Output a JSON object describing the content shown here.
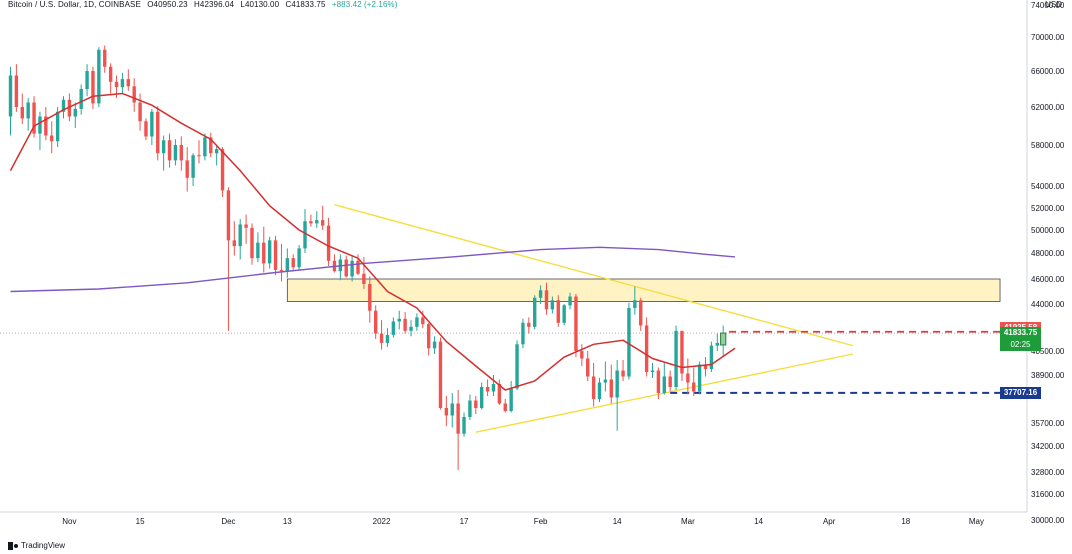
{
  "legend": {
    "symbol": "Bitcoin / U.S. Dollar, 1D, COINBASE",
    "open": "O40950.23",
    "high": "H42396.04",
    "low": "L40130.00",
    "close": "C41833.75",
    "change": "+883.42 (+2.16%)"
  },
  "currency_label": "USD",
  "brand_label": "TradingView",
  "price_tags": {
    "red_level": "41935.58",
    "current_price": "41833.75",
    "countdown": "02:25",
    "blue_level": "37707.16"
  },
  "colors": {
    "up": "#26a69a",
    "down": "#ef5350",
    "ema_short": "#d32f2f",
    "ema_long": "#7e57c2",
    "trendline": "#f5dd3e",
    "zone_fill": "#fff3c4",
    "red_dashed": "#e53935",
    "blue_dashed": "#1a3a8f",
    "price_tag_green": "#1f9c3a"
  },
  "chart_data": {
    "type": "candlestick",
    "x_axis_labels": [
      "Nov",
      "15",
      "Dec",
      "13",
      "2022",
      "17",
      "Feb",
      "14",
      "Mar",
      "14",
      "Apr",
      "18",
      "May"
    ],
    "y_axis_labels": [
      "74000.00",
      "70000.00",
      "66000.00",
      "62000.00",
      "58000.00",
      "54000.00",
      "52000.00",
      "50000.00",
      "48000.00",
      "46000.00",
      "44000.00",
      "40500.00",
      "38900.00",
      "35700.00",
      "34200.00",
      "32800.00",
      "31600.00",
      "30000.00"
    ],
    "ylim": [
      30000,
      74000
    ],
    "resistance_zone": [
      44200,
      46000
    ],
    "horizontal_levels": [
      41935.58,
      37707.16
    ],
    "candles": [
      [
        61000,
        66500,
        59000,
        65500
      ],
      [
        65500,
        66800,
        61500,
        62000
      ],
      [
        62000,
        63500,
        60200,
        60800
      ],
      [
        60800,
        63000,
        59500,
        62500
      ],
      [
        62500,
        63200,
        58800,
        59200
      ],
      [
        59200,
        61500,
        57500,
        61000
      ],
      [
        61000,
        62000,
        58500,
        59000
      ],
      [
        59000,
        60500,
        57200,
        58400
      ],
      [
        58400,
        62000,
        57800,
        61500
      ],
      [
        61500,
        63200,
        60800,
        62800
      ],
      [
        62800,
        63500,
        60500,
        61000
      ],
      [
        61000,
        62500,
        59800,
        61800
      ],
      [
        61800,
        64500,
        61200,
        64000
      ],
      [
        64000,
        66800,
        63200,
        66000
      ],
      [
        66000,
        66500,
        61800,
        62400
      ],
      [
        62400,
        68800,
        62000,
        68500
      ],
      [
        68500,
        69000,
        65800,
        66500
      ],
      [
        66500,
        66900,
        63500,
        64800
      ],
      [
        64800,
        65500,
        63000,
        64200
      ],
      [
        64200,
        65800,
        63500,
        65100
      ],
      [
        65100,
        66200,
        63800,
        64300
      ],
      [
        64300,
        65200,
        61500,
        62500
      ],
      [
        62500,
        63500,
        59500,
        60500
      ],
      [
        60500,
        60800,
        58500,
        58900
      ],
      [
        58900,
        61800,
        58000,
        61500
      ],
      [
        61500,
        62100,
        56500,
        57200
      ],
      [
        57200,
        59000,
        55500,
        58500
      ],
      [
        58500,
        59200,
        55800,
        56500
      ],
      [
        56500,
        58600,
        56000,
        58000
      ],
      [
        58000,
        58900,
        55500,
        56500
      ],
      [
        56500,
        57800,
        53500,
        54800
      ],
      [
        54800,
        57200,
        54000,
        57000
      ],
      [
        57000,
        58500,
        56200,
        56900
      ],
      [
        56900,
        59200,
        56500,
        58800
      ],
      [
        58800,
        59300,
        56800,
        57200
      ],
      [
        57200,
        58000,
        56000,
        57600
      ],
      [
        57600,
        57800,
        53000,
        53600
      ],
      [
        53600,
        53900,
        42000,
        49100
      ],
      [
        49100,
        50800,
        47800,
        48600
      ],
      [
        48600,
        51000,
        47500,
        50500
      ],
      [
        50500,
        51400,
        48800,
        50200
      ],
      [
        50200,
        50600,
        47100,
        47600
      ],
      [
        47600,
        49800,
        47300,
        48900
      ],
      [
        48900,
        50300,
        46500,
        47200
      ],
      [
        47200,
        49400,
        46800,
        49100
      ],
      [
        49100,
        49500,
        46300,
        46700
      ],
      [
        46700,
        48800,
        45800,
        46600
      ],
      [
        46600,
        48400,
        46100,
        47600
      ],
      [
        47600,
        47900,
        46700,
        46900
      ],
      [
        46900,
        48700,
        46700,
        48400
      ],
      [
        48400,
        51900,
        48000,
        50800
      ],
      [
        50800,
        51400,
        50300,
        50600
      ],
      [
        50600,
        51700,
        50200,
        50900
      ],
      [
        50900,
        52200,
        50000,
        50400
      ],
      [
        50400,
        51100,
        47000,
        47400
      ],
      [
        47400,
        47900,
        46500,
        46600
      ],
      [
        46600,
        47900,
        45900,
        47500
      ],
      [
        47500,
        47800,
        46100,
        46200
      ],
      [
        46200,
        47800,
        45800,
        47400
      ],
      [
        47400,
        47900,
        46300,
        46400
      ],
      [
        46400,
        47700,
        45200,
        45600
      ],
      [
        45600,
        46200,
        42600,
        43500
      ],
      [
        43500,
        43900,
        41400,
        41800
      ],
      [
        41800,
        42800,
        40600,
        41100
      ],
      [
        41100,
        42200,
        40800,
        41700
      ],
      [
        41700,
        43000,
        41500,
        42700
      ],
      [
        42700,
        43500,
        42100,
        42900
      ],
      [
        42900,
        43400,
        41800,
        42000
      ],
      [
        42000,
        42800,
        41600,
        42300
      ],
      [
        42300,
        43300,
        42000,
        43000
      ],
      [
        43000,
        43500,
        42200,
        42500
      ],
      [
        42500,
        42600,
        40200,
        40700
      ],
      [
        40700,
        41600,
        40300,
        41200
      ],
      [
        41200,
        41500,
        36600,
        36700
      ],
      [
        36700,
        37500,
        35500,
        36200
      ],
      [
        36200,
        37700,
        35400,
        37000
      ],
      [
        37000,
        37900,
        32900,
        35000
      ],
      [
        35000,
        36400,
        34800,
        36100
      ],
      [
        36100,
        37600,
        35900,
        37200
      ],
      [
        37200,
        37500,
        36300,
        36700
      ],
      [
        36700,
        38400,
        36600,
        38100
      ],
      [
        38100,
        38600,
        37500,
        37800
      ],
      [
        37800,
        38900,
        37500,
        38300
      ],
      [
        38300,
        38600,
        36900,
        37000
      ],
      [
        37000,
        37300,
        36400,
        36500
      ],
      [
        36500,
        38500,
        36400,
        38000
      ],
      [
        38000,
        41300,
        37900,
        41000
      ],
      [
        41000,
        42900,
        40700,
        42600
      ],
      [
        42600,
        43000,
        41800,
        42300
      ],
      [
        42300,
        44700,
        42100,
        44500
      ],
      [
        44500,
        45500,
        44000,
        45100
      ],
      [
        45100,
        45700,
        43200,
        43600
      ],
      [
        43600,
        44600,
        43300,
        44300
      ],
      [
        44300,
        44700,
        42300,
        42600
      ],
      [
        42600,
        44000,
        42400,
        43900
      ],
      [
        43900,
        44900,
        43600,
        44600
      ],
      [
        44600,
        44800,
        40100,
        40500
      ],
      [
        40500,
        41000,
        39500,
        40000
      ],
      [
        40000,
        40500,
        38500,
        38800
      ],
      [
        38800,
        39700,
        36800,
        37300
      ],
      [
        37300,
        38700,
        37100,
        38400
      ],
      [
        38400,
        39800,
        37800,
        38600
      ],
      [
        38600,
        39600,
        37000,
        37400
      ],
      [
        37400,
        39900,
        35200,
        39200
      ],
      [
        39200,
        39900,
        38500,
        38800
      ],
      [
        38800,
        44100,
        38600,
        43700
      ],
      [
        43700,
        45400,
        43200,
        44300
      ],
      [
        44300,
        44500,
        42000,
        42400
      ],
      [
        42400,
        43000,
        38800,
        39100
      ],
      [
        39100,
        39700,
        38700,
        39200
      ],
      [
        39200,
        39400,
        37300,
        37700
      ],
      [
        37700,
        39700,
        37600,
        38800
      ],
      [
        38800,
        39200,
        37800,
        38100
      ],
      [
        38100,
        42400,
        37900,
        42000
      ],
      [
        42000,
        42000,
        38500,
        39000
      ],
      [
        39000,
        40000,
        37600,
        38400
      ],
      [
        38400,
        39400,
        37500,
        37800
      ],
      [
        37800,
        39800,
        37600,
        39600
      ],
      [
        39600,
        40100,
        38800,
        39300
      ],
      [
        39300,
        41200,
        39100,
        40900
      ],
      [
        40900,
        41800,
        40500,
        41100
      ],
      [
        40950.23,
        42396.04,
        40130.0,
        41833.75
      ]
    ],
    "ema_short": [
      [
        0,
        55500
      ],
      [
        4,
        60000
      ],
      [
        9,
        61700
      ],
      [
        14,
        63200
      ],
      [
        19,
        63500
      ],
      [
        24,
        62200
      ],
      [
        29,
        60300
      ],
      [
        34,
        58600
      ],
      [
        39,
        55500
      ],
      [
        44,
        52200
      ],
      [
        49,
        50000
      ],
      [
        54,
        48600
      ],
      [
        59,
        47600
      ],
      [
        64,
        45000
      ],
      [
        69,
        43700
      ],
      [
        74,
        41200
      ],
      [
        79,
        39500
      ],
      [
        84,
        37900
      ],
      [
        89,
        38500
      ],
      [
        94,
        40100
      ],
      [
        99,
        41000
      ],
      [
        104,
        41300
      ],
      [
        109,
        40000
      ],
      [
        114,
        39400
      ],
      [
        119,
        39600
      ],
      [
        123,
        40700
      ]
    ],
    "ema_long": [
      [
        0,
        45000
      ],
      [
        15,
        45200
      ],
      [
        30,
        45700
      ],
      [
        45,
        46500
      ],
      [
        60,
        47200
      ],
      [
        75,
        47700
      ],
      [
        90,
        48300
      ],
      [
        100,
        48500
      ],
      [
        110,
        48300
      ],
      [
        118,
        47900
      ],
      [
        123,
        47700
      ]
    ],
    "trendlines": [
      {
        "from": [
          55,
          52300
        ],
        "to": [
          143,
          40900
        ]
      },
      {
        "from": [
          79,
          35100
        ],
        "to": [
          143,
          40300
        ]
      }
    ]
  }
}
